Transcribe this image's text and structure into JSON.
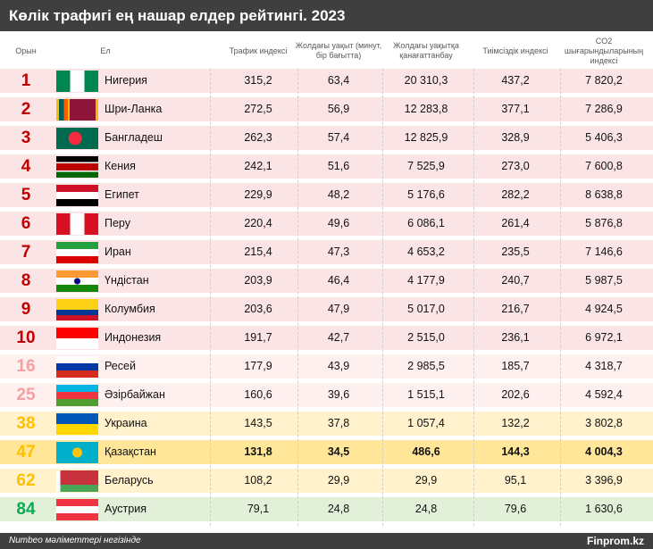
{
  "title": "Көлік трафигі  ең нашар  елдер рейтингі. 2023",
  "headers": {
    "rank": "Орын",
    "country": "Ел",
    "traffic": "Трафик индексі",
    "time": "Жолдағы уақыт (минут, бір бағытта)",
    "dissatisfaction": "Жолдағы уақытқа қанағаттанбау",
    "inefficiency": "Тиімсіздік индексі",
    "co2": "CO2 шығарындыларының индексі"
  },
  "rows": [
    {
      "rank": "1",
      "country": "Нигерия",
      "flag": "ng",
      "tier": "t1",
      "v": [
        "315,2",
        "63,4",
        "20 310,3",
        "437,2",
        "7 820,2"
      ]
    },
    {
      "rank": "2",
      "country": "Шри-Ланка",
      "flag": "lk",
      "tier": "t1",
      "v": [
        "272,5",
        "56,9",
        "12 283,8",
        "377,1",
        "7 286,9"
      ]
    },
    {
      "rank": "3",
      "country": "Бангладеш",
      "flag": "bd",
      "tier": "t1",
      "v": [
        "262,3",
        "57,4",
        "12 825,9",
        "328,9",
        "5 406,3"
      ]
    },
    {
      "rank": "4",
      "country": "Кения",
      "flag": "ke",
      "tier": "t1",
      "v": [
        "242,1",
        "51,6",
        "7 525,9",
        "273,0",
        "7 600,8"
      ]
    },
    {
      "rank": "5",
      "country": "Египет",
      "flag": "eg",
      "tier": "t1",
      "v": [
        "229,9",
        "48,2",
        "5 176,6",
        "282,2",
        "8 638,8"
      ]
    },
    {
      "rank": "6",
      "country": "Перу",
      "flag": "pe",
      "tier": "t1",
      "v": [
        "220,4",
        "49,6",
        "6 086,1",
        "261,4",
        "5 876,8"
      ]
    },
    {
      "rank": "7",
      "country": "Иран",
      "flag": "ir",
      "tier": "t1",
      "v": [
        "215,4",
        "47,3",
        "4 653,2",
        "235,5",
        "7 146,6"
      ]
    },
    {
      "rank": "8",
      "country": "Үндістан",
      "flag": "in",
      "tier": "t1",
      "v": [
        "203,9",
        "46,4",
        "4 177,9",
        "240,7",
        "5 987,5"
      ]
    },
    {
      "rank": "9",
      "country": "Колумбия",
      "flag": "co",
      "tier": "t1",
      "v": [
        "203,6",
        "47,9",
        "5 017,0",
        "216,7",
        "4 924,5"
      ]
    },
    {
      "rank": "10",
      "country": "Индонезия",
      "flag": "id",
      "tier": "t1",
      "v": [
        "191,7",
        "42,7",
        "2 515,0",
        "236,1",
        "6 972,1"
      ]
    },
    {
      "rank": "16",
      "country": "Ресей",
      "flag": "ru",
      "tier": "t2",
      "v": [
        "177,9",
        "43,9",
        "2 985,5",
        "185,7",
        "4 318,7"
      ]
    },
    {
      "rank": "25",
      "country": "Әзірбайжан",
      "flag": "az",
      "tier": "t2",
      "v": [
        "160,6",
        "39,6",
        "1 515,1",
        "202,6",
        "4 592,4"
      ]
    },
    {
      "rank": "38",
      "country": "Украина",
      "flag": "ua",
      "tier": "t3",
      "v": [
        "143,5",
        "37,8",
        "1 057,4",
        "132,2",
        "3 802,8"
      ]
    },
    {
      "rank": "47",
      "country": "Қазақстан",
      "flag": "kz",
      "tier": "t4",
      "v": [
        "131,8",
        "34,5",
        "486,6",
        "144,3",
        "4 004,3"
      ]
    },
    {
      "rank": "62",
      "country": "Беларусь",
      "flag": "by",
      "tier": "t3",
      "v": [
        "108,2",
        "29,9",
        "29,9",
        "95,1",
        "3 396,9"
      ]
    },
    {
      "rank": "84",
      "country": "Аустрия",
      "flag": "at",
      "tier": "t5",
      "v": [
        "79,1",
        "24,8",
        "24,8",
        "79,6",
        "1 630,6"
      ]
    }
  ],
  "footer": {
    "source": "Numbeo мәліметтері негізінде",
    "brand": "Finprom.kz"
  }
}
